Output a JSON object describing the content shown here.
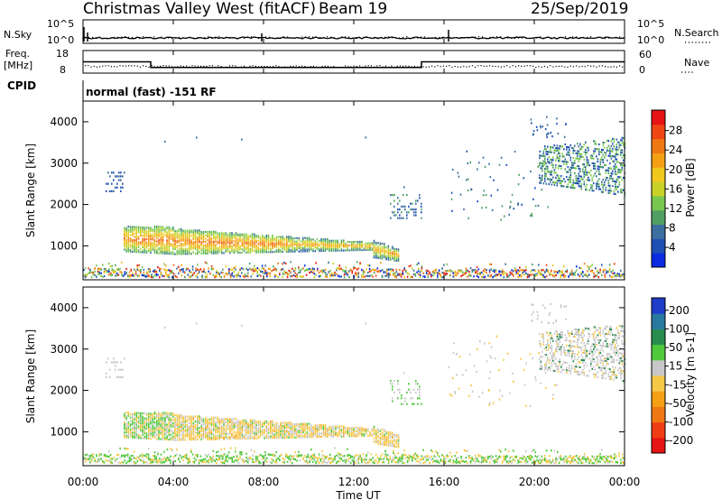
{
  "header": {
    "title": "Christmas Valley West (fitACF)",
    "beam": "Beam 19",
    "date": "25/Sep/2019"
  },
  "top_panels": {
    "nsky_label": "N.Sky",
    "nsky_ticks": [
      "10^5",
      "10^0"
    ],
    "nsearch_label": "N.Search",
    "nsearch_ticks": [
      "10^5",
      "10^0"
    ],
    "freq_label_1": "Freq.",
    "freq_label_2": "[MHz]",
    "freq_ticks": [
      "18",
      "8"
    ],
    "nave_label": "Nave",
    "nave_ticks": [
      "60",
      "0"
    ],
    "cpid_label": "CPID",
    "cpid_text": "normal (fast) -151 RF"
  },
  "power_panel": {
    "ylabel": "Slant Range [km]",
    "yticks": [
      "4000",
      "3000",
      "2000",
      "1000"
    ],
    "colorbar_label": "Power [dB]",
    "colorbar_ticks": [
      "28",
      "24",
      "20",
      "16",
      "12",
      "8",
      "4"
    ],
    "colors": [
      "#0a2be0",
      "#1e50b4",
      "#3c6ea0",
      "#50a064",
      "#78c850",
      "#c8d228",
      "#f0c81e",
      "#f5a014",
      "#f07814",
      "#f04614",
      "#e61414"
    ]
  },
  "velocity_panel": {
    "ylabel": "Slant Range [km]",
    "yticks": [
      "4000",
      "3000",
      "2000",
      "1000"
    ],
    "colorbar_label": "Velocity [m s-1]",
    "colorbar_ticks": [
      "200",
      "100",
      "50",
      "15",
      "-15",
      "-50",
      "-100",
      "-200"
    ],
    "colors": [
      "#1e3cc8",
      "#2878a0",
      "#288c50",
      "#50c83c",
      "#c8c8c8",
      "#f5c846",
      "#f5a014",
      "#f07814",
      "#f03c14",
      "#e61414"
    ]
  },
  "xaxis": {
    "label": "Time UT",
    "ticks": [
      "00:00",
      "04:00",
      "08:00",
      "12:00",
      "16:00",
      "20:00",
      "00:00"
    ]
  },
  "chart_data": [
    {
      "type": "line",
      "name": "N.Sky / N.Search",
      "x_hours": [
        0,
        4,
        8,
        12,
        16,
        20,
        24
      ],
      "ylim": [
        1,
        100000
      ],
      "scale": "log"
    },
    {
      "type": "line",
      "name": "Freq / Nave",
      "freq_ylim": [
        8,
        18
      ],
      "nave_ylim": [
        0,
        60
      ],
      "freq_step_x_hours": [
        0,
        3,
        3,
        15,
        15,
        24
      ],
      "freq_step_values": [
        13,
        13,
        10.5,
        10.5,
        13,
        13
      ]
    },
    {
      "type": "heatmap",
      "quantity": "Power",
      "unit": "dB",
      "xlim_hours": [
        0,
        24
      ],
      "ylim_km": [
        180,
        4500
      ],
      "clim": [
        0,
        30
      ]
    },
    {
      "type": "heatmap",
      "quantity": "Velocity",
      "unit": "m s-1",
      "xlim_hours": [
        0,
        24
      ],
      "ylim_km": [
        180,
        4500
      ],
      "clim": [
        -250,
        250
      ]
    }
  ]
}
